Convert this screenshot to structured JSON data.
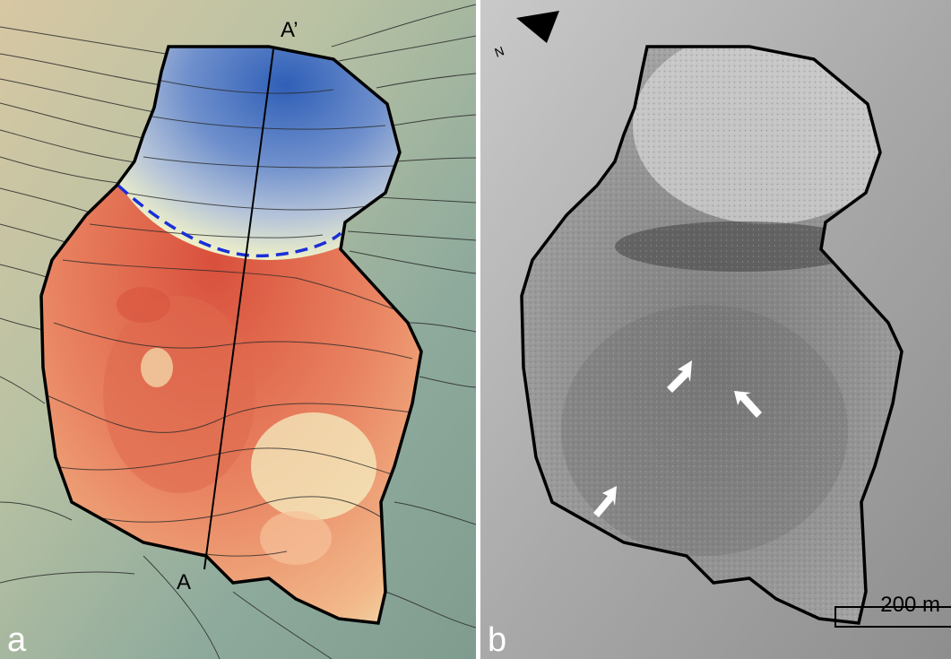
{
  "panel_a": {
    "letter": "a",
    "section_start_label": "A",
    "section_end_label": "A’"
  },
  "panel_b": {
    "letter": "b",
    "north_label": "N",
    "scale_label": "200 m"
  },
  "colors": {
    "outline": "#000000",
    "dashed_boundary": "#1a2fd6",
    "depletion_blue": "#4a74c4",
    "accumulation_red": "#e1644a",
    "light_yellow": "#f4f1c2",
    "hillshade_gray": "#9a9a9a"
  },
  "icons": [
    "north-arrow-icon",
    "white-arrow-icon"
  ]
}
